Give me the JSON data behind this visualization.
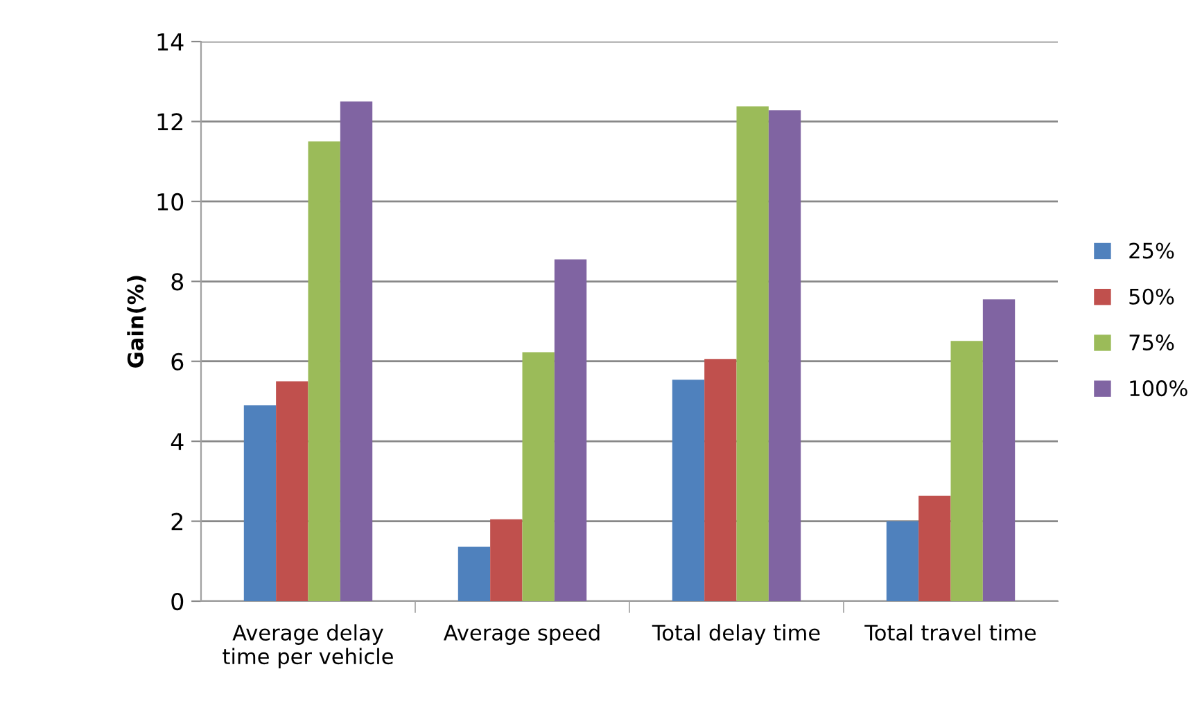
{
  "chart_data": {
    "type": "bar",
    "ylabel": "Gain(%)",
    "categories": [
      "Average delay\ntime per vehicle",
      "Average speed",
      "Total delay time",
      "Total travel time"
    ],
    "series": [
      {
        "name": "25%",
        "color": "#4f81bd",
        "values": [
          4.9,
          1.36,
          5.54,
          2.0
        ]
      },
      {
        "name": "50%",
        "color": "#c0504d",
        "values": [
          5.5,
          2.05,
          6.06,
          2.64
        ]
      },
      {
        "name": "75%",
        "color": "#9bbb59",
        "values": [
          11.5,
          6.23,
          12.38,
          6.51
        ]
      },
      {
        "name": "100%",
        "color": "#8064a2",
        "values": [
          12.5,
          8.55,
          12.28,
          7.55
        ]
      }
    ],
    "ylim": [
      0,
      14
    ],
    "yticks": [
      0,
      2,
      4,
      6,
      8,
      10,
      12,
      14
    ],
    "grid": "y",
    "legend": "right"
  }
}
